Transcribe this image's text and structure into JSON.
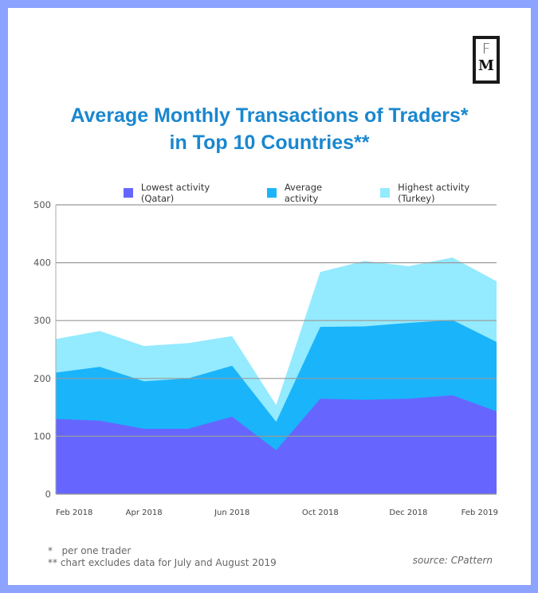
{
  "logo": {
    "line1": "F",
    "line2": "M"
  },
  "colors": {
    "frame": "#8ca3ff",
    "title": "#1a87cf",
    "lowest": "#6666ff",
    "average": "#1ab4fb",
    "highest": "#94eafe",
    "grid": "#999999"
  },
  "chart_data": {
    "type": "area",
    "title": "Average Monthly Transactions of Traders* in Top 10 Countries**",
    "title_lines": [
      "Average Monthly Transactions of Traders*",
      "in Top 10 Countries**"
    ],
    "xlabel": "",
    "ylabel": "",
    "ylim": [
      0,
      500
    ],
    "yticks": [
      0,
      100,
      200,
      300,
      400,
      500
    ],
    "x": [
      "Feb 2018",
      "Mar 2018",
      "Apr 2018",
      "May 2018",
      "Jun 2018",
      "Sep 2018",
      "Oct 2018",
      "Nov 2018",
      "Dec 2018",
      "Jan 2019",
      "Feb 2019"
    ],
    "xtick_labels": [
      "Feb 2018",
      "Apr 2018",
      "Jun 2018",
      "Oct 2018",
      "Dec 2018",
      "Feb 2019"
    ],
    "xtick_index": [
      0,
      2,
      4,
      6,
      8,
      10
    ],
    "grid": true,
    "legend_position": "top",
    "series": [
      {
        "name": "Highest activity (Turkey)",
        "color": "#94eafe",
        "values": [
          268,
          282,
          256,
          261,
          273,
          154,
          384,
          403,
          394,
          409,
          368
        ]
      },
      {
        "name": "Average activity",
        "color": "#1ab4fb",
        "values": [
          210,
          220,
          195,
          200,
          222,
          125,
          289,
          290,
          296,
          301,
          263
        ]
      },
      {
        "name": "Lowest activity (Qatar)",
        "color": "#6666ff",
        "values": [
          130,
          127,
          113,
          113,
          134,
          76,
          165,
          163,
          165,
          171,
          143
        ]
      }
    ],
    "legend": [
      "Lowest activity (Qatar)",
      "Average activity",
      "Highest activity (Turkey)"
    ]
  },
  "footnotes": [
    "*   per one trader",
    "** chart excludes data for July and August 2019"
  ],
  "source": "source: CPattern"
}
